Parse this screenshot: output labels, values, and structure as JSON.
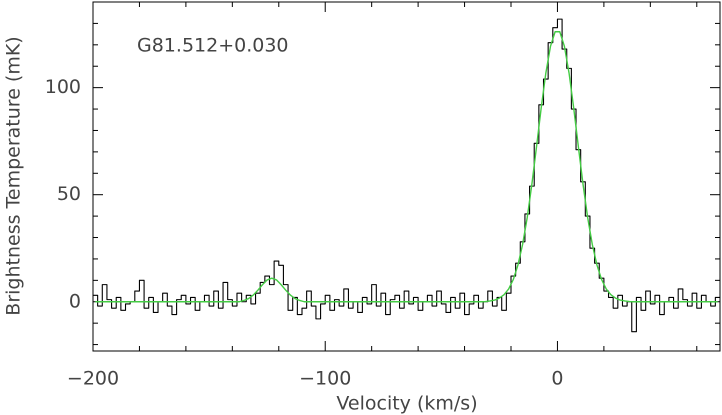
{
  "chart_data": {
    "type": "line",
    "annotation": "G81.512+0.030",
    "x_label": "Velocity (km/s)",
    "y_label": "Brightness Temperature (mK)",
    "x": [
      -199,
      -197,
      -195,
      -193,
      -191,
      -189,
      -187,
      -185,
      -183,
      -181,
      -179,
      -177,
      -175,
      -173,
      -171,
      -169,
      -167,
      -165,
      -163,
      -161,
      -159,
      -157,
      -155,
      -153,
      -151,
      -149,
      -147,
      -145,
      -143,
      -141,
      -139,
      -137,
      -135,
      -133,
      -131,
      -129,
      -127,
      -125,
      -123,
      -121,
      -119,
      -117,
      -115,
      -113,
      -111,
      -109,
      -107,
      -105,
      -103,
      -101,
      -99,
      -97,
      -95,
      -93,
      -91,
      -89,
      -87,
      -85,
      -83,
      -81,
      -79,
      -77,
      -75,
      -73,
      -71,
      -69,
      -67,
      -65,
      -63,
      -61,
      -59,
      -57,
      -55,
      -53,
      -51,
      -49,
      -47,
      -45,
      -43,
      -41,
      -39,
      -37,
      -35,
      -33,
      -31,
      -29,
      -27,
      -25,
      -23,
      -21,
      -19,
      -17,
      -15,
      -13,
      -11,
      -9,
      -7,
      -5,
      -3,
      -1,
      1,
      3,
      5,
      7,
      9,
      11,
      13,
      15,
      17,
      19,
      21,
      23,
      25,
      27,
      29,
      31,
      33,
      35,
      37,
      39,
      41,
      43,
      45,
      47,
      49,
      51,
      53,
      55,
      57,
      59,
      61,
      63,
      65,
      67,
      69
    ],
    "series": [
      {
        "color": "#000000",
        "drawstyle": "steps-mid",
        "values": [
          3,
          -2,
          8,
          1,
          -3,
          2,
          -4,
          -1,
          0,
          5,
          10,
          -3,
          2,
          -5,
          0,
          4,
          -2,
          -6,
          1,
          3,
          -1,
          2,
          -4,
          0,
          3,
          -2,
          5,
          -3,
          9,
          1,
          -2,
          4,
          0,
          3,
          -1,
          4,
          9,
          12,
          8,
          19,
          17,
          8,
          -4,
          2,
          -6,
          -3,
          5,
          -2,
          -8,
          -1,
          3,
          -4,
          1,
          -2,
          6,
          -3,
          0,
          -5,
          2,
          -1,
          8,
          -2,
          4,
          -6,
          1,
          3,
          -3,
          5,
          -1,
          2,
          -4,
          0,
          3,
          -2,
          5,
          -1,
          -5,
          2,
          -3,
          4,
          -6,
          -1,
          3,
          -3,
          0,
          5,
          -2,
          2,
          -4,
          4,
          12,
          18,
          28,
          41,
          54,
          74,
          92,
          104,
          121,
          128,
          132,
          118,
          109,
          90,
          71,
          56,
          40,
          25,
          18,
          11,
          5,
          2,
          -3,
          3,
          -2,
          0,
          -14,
          2,
          -4,
          5,
          -1,
          3,
          -6,
          0,
          2,
          -3,
          6,
          1,
          -2,
          4,
          -3,
          3,
          0,
          -2,
          2
        ]
      },
      {
        "color": "#44cc44",
        "drawstyle": "smooth",
        "values": [
          0,
          0,
          0,
          0,
          0,
          0,
          0,
          0,
          0,
          0,
          0,
          0,
          0,
          0,
          0,
          0,
          0,
          0,
          0,
          0,
          0,
          0,
          0,
          0,
          0,
          0,
          0,
          0,
          0,
          0,
          0,
          0,
          0.6,
          1.5,
          3.1,
          5.4,
          8.0,
          10.2,
          11.0,
          10.2,
          8.0,
          5.4,
          3.1,
          1.5,
          0.6,
          0,
          0,
          0,
          0,
          0,
          0,
          0,
          0,
          0,
          0,
          0,
          0,
          0,
          0,
          0,
          0,
          0,
          0,
          0,
          0,
          0,
          0,
          0,
          0,
          0,
          0,
          0,
          0,
          0,
          0,
          0,
          0,
          0,
          0,
          0,
          0,
          0,
          0,
          0,
          0.1,
          0.4,
          0.8,
          1.7,
          3.3,
          6.0,
          10.4,
          17.2,
          26.8,
          39.4,
          55.0,
          72.5,
          90.5,
          106.8,
          119.3,
          126.1,
          126.1,
          119.3,
          106.8,
          90.5,
          72.5,
          55.0,
          39.4,
          26.8,
          17.2,
          10.4,
          6.0,
          3.3,
          1.7,
          0.8,
          0.4,
          0.1,
          0,
          0,
          0,
          0,
          0,
          0,
          0,
          0,
          0,
          0,
          0,
          0,
          0,
          0,
          0,
          0,
          0,
          0,
          0
        ]
      }
    ],
    "xlim": [
      -200,
      70
    ],
    "ylim": [
      -23,
      140
    ],
    "xticks": [
      {
        "value": -200,
        "label": "−200"
      },
      {
        "value": -100,
        "label": "−100"
      },
      0
    ],
    "yticks": [
      0,
      50,
      100
    ],
    "xticks_minor": [
      -180,
      -160,
      -140,
      -120,
      -80,
      -60,
      -40,
      -20,
      20,
      40,
      60
    ],
    "yticks_minor": [
      -20,
      -10,
      10,
      20,
      30,
      40,
      60,
      70,
      80,
      90,
      110,
      120,
      130
    ],
    "grid": false
  }
}
